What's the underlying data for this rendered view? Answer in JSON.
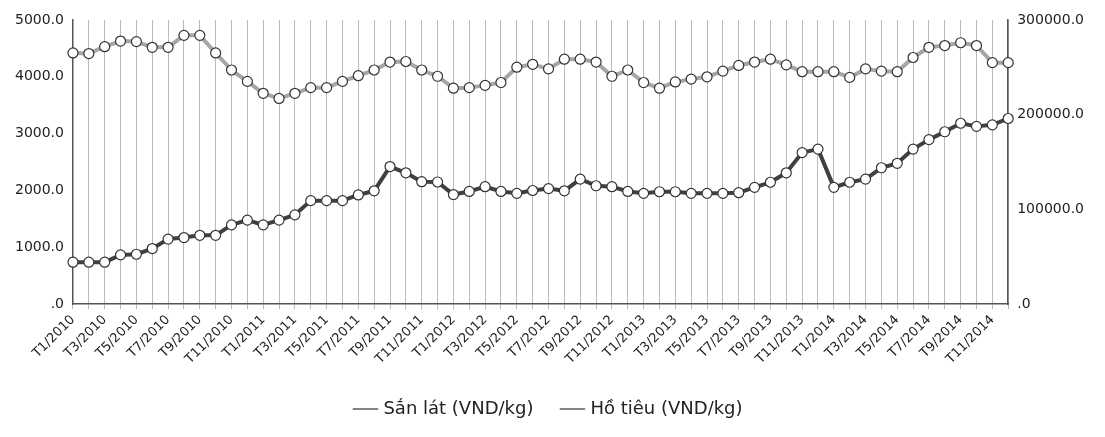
{
  "chart_data": {
    "type": "line",
    "categories": [
      "T1/2010",
      null,
      "T3/2010",
      null,
      "T5/2010",
      null,
      "T7/2010",
      null,
      "T9/2010",
      null,
      "T11/2010",
      null,
      "T1/2011",
      null,
      "T3/2011",
      null,
      "T5/2011",
      null,
      "T7/2011",
      null,
      "T9/2011",
      null,
      "T11/2011",
      null,
      "T1/2012",
      null,
      "T3/2012",
      null,
      "T5/2012",
      null,
      "T7/2012",
      null,
      "T9/2012",
      null,
      "T11/2012",
      null,
      "T1/2013",
      null,
      "T3/2013",
      null,
      "T5/2013",
      null,
      "T7/2013",
      null,
      "T9/2013",
      null,
      "T11/2013",
      null,
      "T1/2014",
      null,
      "T3/2014",
      null,
      "T5/2014",
      null,
      "T7/2014",
      null,
      "T9/2014",
      null,
      "T11/2014",
      null
    ],
    "series": [
      {
        "name": "Sắn lát (VND/kg)",
        "color": "#a6a6a6",
        "values": [
          4420,
          4410,
          4530,
          4630,
          4620,
          4520,
          4520,
          4730,
          4730,
          4420,
          4120,
          3920,
          3710,
          3620,
          3710,
          3810,
          3810,
          3920,
          4020,
          4120,
          4260,
          4270,
          4120,
          4010,
          3800,
          3810,
          3850,
          3900,
          4170,
          4220,
          4140,
          4310,
          4310,
          4260,
          4010,
          4120,
          3900,
          3800,
          3910,
          3960,
          4000,
          4100,
          4200,
          4260,
          4310,
          4210,
          4090,
          4090,
          4090,
          3990,
          4140,
          4100,
          4090,
          4340,
          4520,
          4550,
          4600,
          4550,
          4250,
          4250
        ]
      },
      {
        "name": "Hồ tiêu (VND/kg)",
        "color": "#404040",
        "axis": "y2",
        "values": [
          44300,
          44300,
          44300,
          52000,
          52700,
          58700,
          68700,
          70300,
          72700,
          72700,
          83700,
          88700,
          83700,
          88700,
          94300,
          109300,
          109300,
          109300,
          115300,
          119700,
          145300,
          138700,
          129300,
          129000,
          115700,
          119000,
          124000,
          119000,
          117000,
          120000,
          122000,
          119700,
          132000,
          125000,
          124000,
          119000,
          117000,
          118700,
          118700,
          117000,
          117000,
          117000,
          117700,
          123300,
          128700,
          138700,
          160000,
          163700,
          123300,
          128700,
          132000,
          144000,
          148700,
          163700,
          173700,
          182000,
          191000,
          187700,
          189300,
          196000
        ]
      }
    ],
    "ylim": [
      0,
      5000
    ],
    "yticks": [
      {
        "value": 0,
        "label": ".0"
      },
      {
        "value": 1000,
        "label": "1000.0"
      },
      {
        "value": 2000,
        "label": "2000.0"
      },
      {
        "value": 3000,
        "label": "3000.0"
      },
      {
        "value": 4000,
        "label": "4000.0"
      },
      {
        "value": 5000,
        "label": "5000.0"
      }
    ],
    "y2lim": [
      0,
      300000
    ],
    "y2ticks": [
      {
        "value": 0,
        "label": ".0"
      },
      {
        "value": 100000,
        "label": "100000.0"
      },
      {
        "value": 200000,
        "label": "200000.0"
      },
      {
        "value": 300000,
        "label": "300000.0"
      }
    ],
    "grid": "x",
    "legend": "bottom",
    "marker": "circle",
    "line_style": "solid"
  }
}
